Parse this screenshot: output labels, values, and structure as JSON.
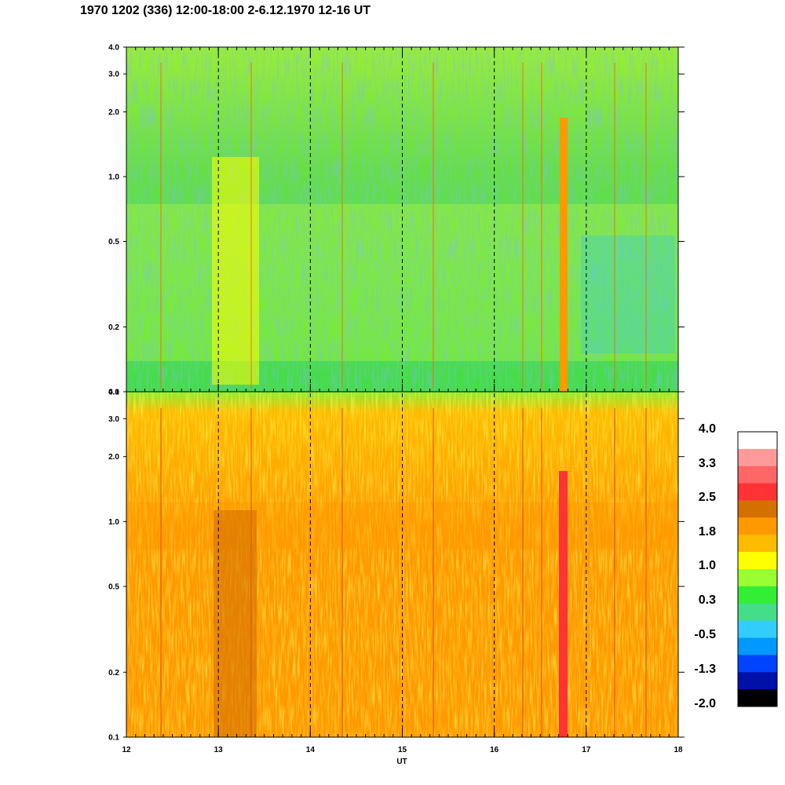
{
  "title": "1970 1202 (336) 12:00-18:00 2-6.12.1970  12-16 UT",
  "chart_data": {
    "type": "heatmap",
    "xlabel": "UT",
    "x_ticks": [
      "12",
      "13",
      "14",
      "15",
      "16",
      "17",
      "18"
    ],
    "xlim": [
      12,
      18
    ],
    "dashed_hour_lines": [
      13,
      14,
      15,
      16,
      17
    ],
    "panels": [
      {
        "y_ticks": [
          "0.1",
          "0.2",
          "0.5",
          "1.0",
          "2.0",
          "3.0",
          "4.0"
        ],
        "ylim": [
          0.1,
          4.0
        ],
        "y_scale": "log",
        "dominant_levels": "green / yellow-green (about 0.3 to 1.0), with yellow near 13 UT and an orange streak near 16.75 UT"
      },
      {
        "y_ticks": [
          "0.1",
          "0.2",
          "0.5",
          "1.0",
          "2.0",
          "3.0",
          "4.0"
        ],
        "ylim": [
          0.1,
          4.0
        ],
        "y_scale": "log",
        "dominant_levels": "orange / yellow (about 1.0 to 2.5), with a red streak near 16.75 UT and brown near 13 UT"
      }
    ],
    "colorbar": {
      "tick_labels": [
        "4.0",
        "3.3",
        "2.5",
        "1.8",
        "1.0",
        "0.3",
        "-0.5",
        "-1.3",
        "-2.0"
      ],
      "colors": [
        "#ffffff",
        "#ff9a9a",
        "#ff6666",
        "#ff3333",
        "#d47000",
        "#ff9900",
        "#ffbb00",
        "#ffff00",
        "#99ff33",
        "#33ee33",
        "#44dd88",
        "#33ccff",
        "#0099ff",
        "#0044ff",
        "#0011aa",
        "#000000"
      ]
    }
  }
}
